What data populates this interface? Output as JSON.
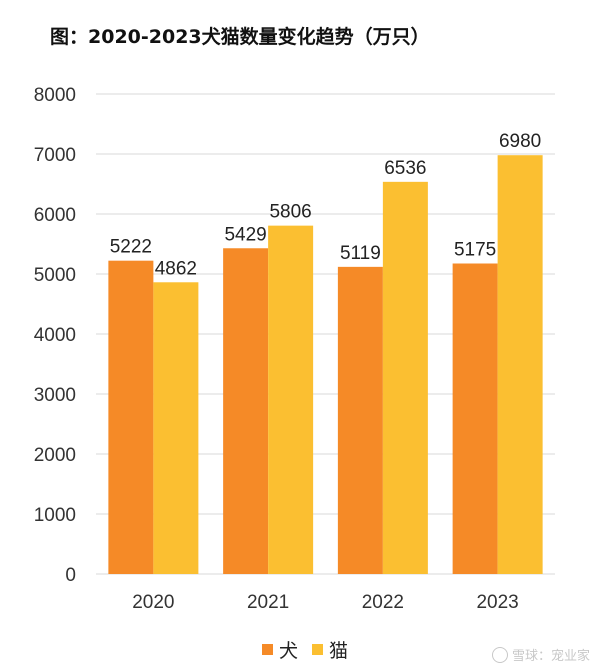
{
  "title": "图：2020-2023犬猫数量变化趋势（万只）",
  "watermark": "雪球：宠业家",
  "colors": {
    "dog": "#f58a27",
    "cat": "#fbbf31",
    "grid": "#d9d9d9"
  },
  "chart_data": {
    "type": "bar",
    "title": "图：2020-2023犬猫数量变化趋势（万只）",
    "categories": [
      "2020",
      "2021",
      "2022",
      "2023"
    ],
    "series": [
      {
        "name": "犬",
        "values": [
          5222,
          5429,
          5119,
          5175
        ]
      },
      {
        "name": "猫",
        "values": [
          4862,
          5806,
          6536,
          6980
        ]
      }
    ],
    "xlabel": "",
    "ylabel": "",
    "ylim": [
      0,
      8000
    ],
    "yticks": [
      0,
      1000,
      2000,
      3000,
      4000,
      5000,
      6000,
      7000,
      8000
    ],
    "grid": true,
    "legend": "bottom"
  }
}
